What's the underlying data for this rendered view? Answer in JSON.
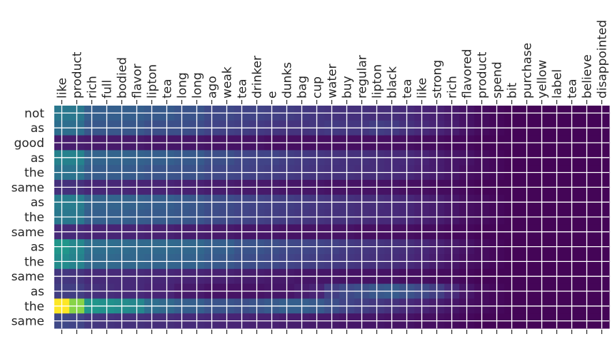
{
  "chart_data": {
    "type": "heatmap",
    "title": "",
    "xlabel": "",
    "ylabel": "",
    "grid": true,
    "legend": "none",
    "colormap": "viridis",
    "value_range": [
      0,
      1
    ],
    "x_categories": [
      "like",
      "product",
      "rich",
      "full",
      "bodied",
      "flavor",
      "lipton",
      "tea",
      "long",
      "long",
      "ago",
      "weak",
      "tea",
      "drinker",
      "e",
      "dunks",
      "bag",
      "cup",
      "water",
      "buy",
      "regular",
      "lipton",
      "black",
      "tea",
      "like",
      "strong",
      "rich",
      "flavored",
      "product",
      "spend",
      "bit",
      "purchase",
      "yellow",
      "label",
      "tea",
      "believe",
      "disappointed"
    ],
    "y_categories": [
      "not",
      "as",
      "good",
      "as",
      "the",
      "same",
      "as",
      "the",
      "same",
      "as",
      "the",
      "same",
      "as",
      "the",
      "same"
    ],
    "values": [
      [
        0.4,
        0.4,
        0.3,
        0.3,
        0.3,
        0.3,
        0.28,
        0.28,
        0.26,
        0.26,
        0.22,
        0.22,
        0.2,
        0.2,
        0.19,
        0.18,
        0.17,
        0.16,
        0.15,
        0.14,
        0.14,
        0.13,
        0.13,
        0.12,
        0.1,
        0.09,
        0.07,
        0.05,
        0.03,
        0.02,
        0.01,
        0.01,
        0.01,
        0.01,
        0.01,
        0.01,
        0.01
      ],
      [
        0.36,
        0.36,
        0.27,
        0.27,
        0.27,
        0.27,
        0.24,
        0.24,
        0.24,
        0.23,
        0.2,
        0.19,
        0.18,
        0.17,
        0.16,
        0.15,
        0.15,
        0.16,
        0.17,
        0.16,
        0.16,
        0.18,
        0.17,
        0.14,
        0.12,
        0.1,
        0.08,
        0.05,
        0.03,
        0.02,
        0.01,
        0.01,
        0.01,
        0.01,
        0.01,
        0.01,
        0.01
      ],
      [
        0.08,
        0.08,
        0.07,
        0.07,
        0.07,
        0.07,
        0.06,
        0.06,
        0.06,
        0.06,
        0.05,
        0.05,
        0.05,
        0.05,
        0.04,
        0.04,
        0.04,
        0.04,
        0.04,
        0.04,
        0.04,
        0.04,
        0.04,
        0.04,
        0.03,
        0.03,
        0.02,
        0.02,
        0.01,
        0.01,
        0.01,
        0.01,
        0.01,
        0.01,
        0.01,
        0.01,
        0.01
      ],
      [
        0.44,
        0.44,
        0.32,
        0.32,
        0.32,
        0.31,
        0.3,
        0.3,
        0.28,
        0.28,
        0.24,
        0.24,
        0.21,
        0.2,
        0.2,
        0.18,
        0.17,
        0.16,
        0.15,
        0.14,
        0.14,
        0.13,
        0.12,
        0.12,
        0.1,
        0.08,
        0.06,
        0.05,
        0.03,
        0.02,
        0.01,
        0.01,
        0.01,
        0.01,
        0.01,
        0.01,
        0.01
      ],
      [
        0.38,
        0.38,
        0.29,
        0.29,
        0.29,
        0.28,
        0.26,
        0.26,
        0.25,
        0.25,
        0.22,
        0.21,
        0.2,
        0.19,
        0.18,
        0.17,
        0.16,
        0.15,
        0.14,
        0.14,
        0.13,
        0.13,
        0.12,
        0.11,
        0.09,
        0.08,
        0.06,
        0.04,
        0.03,
        0.02,
        0.01,
        0.01,
        0.01,
        0.01,
        0.01,
        0.01,
        0.01
      ],
      [
        0.14,
        0.14,
        0.11,
        0.11,
        0.11,
        0.1,
        0.1,
        0.1,
        0.09,
        0.09,
        0.08,
        0.08,
        0.07,
        0.07,
        0.07,
        0.06,
        0.06,
        0.06,
        0.05,
        0.05,
        0.05,
        0.05,
        0.05,
        0.04,
        0.04,
        0.03,
        0.03,
        0.02,
        0.01,
        0.01,
        0.01,
        0.01,
        0.01,
        0.01,
        0.01,
        0.01,
        0.01
      ],
      [
        0.42,
        0.42,
        0.32,
        0.32,
        0.32,
        0.31,
        0.3,
        0.3,
        0.28,
        0.27,
        0.24,
        0.23,
        0.21,
        0.2,
        0.19,
        0.18,
        0.17,
        0.16,
        0.15,
        0.14,
        0.13,
        0.13,
        0.12,
        0.11,
        0.09,
        0.08,
        0.06,
        0.04,
        0.03,
        0.02,
        0.01,
        0.01,
        0.01,
        0.01,
        0.01,
        0.01,
        0.01
      ],
      [
        0.4,
        0.4,
        0.3,
        0.3,
        0.3,
        0.29,
        0.28,
        0.28,
        0.27,
        0.26,
        0.23,
        0.22,
        0.2,
        0.19,
        0.18,
        0.17,
        0.16,
        0.15,
        0.14,
        0.14,
        0.13,
        0.12,
        0.12,
        0.11,
        0.09,
        0.08,
        0.06,
        0.04,
        0.03,
        0.02,
        0.01,
        0.01,
        0.01,
        0.01,
        0.01,
        0.01,
        0.01
      ],
      [
        0.12,
        0.12,
        0.1,
        0.1,
        0.1,
        0.1,
        0.09,
        0.09,
        0.08,
        0.08,
        0.07,
        0.07,
        0.06,
        0.06,
        0.06,
        0.05,
        0.05,
        0.05,
        0.05,
        0.05,
        0.04,
        0.04,
        0.04,
        0.04,
        0.03,
        0.03,
        0.02,
        0.02,
        0.01,
        0.01,
        0.01,
        0.01,
        0.01,
        0.01,
        0.01,
        0.01,
        0.01
      ],
      [
        0.52,
        0.46,
        0.36,
        0.36,
        0.35,
        0.34,
        0.34,
        0.34,
        0.33,
        0.33,
        0.3,
        0.3,
        0.26,
        0.26,
        0.24,
        0.22,
        0.21,
        0.2,
        0.19,
        0.17,
        0.16,
        0.15,
        0.14,
        0.13,
        0.11,
        0.09,
        0.07,
        0.05,
        0.03,
        0.02,
        0.01,
        0.01,
        0.01,
        0.01,
        0.01,
        0.01,
        0.01
      ],
      [
        0.48,
        0.44,
        0.34,
        0.34,
        0.33,
        0.33,
        0.32,
        0.32,
        0.31,
        0.31,
        0.28,
        0.27,
        0.24,
        0.23,
        0.22,
        0.2,
        0.19,
        0.18,
        0.17,
        0.16,
        0.15,
        0.14,
        0.13,
        0.12,
        0.1,
        0.08,
        0.06,
        0.04,
        0.03,
        0.02,
        0.01,
        0.01,
        0.01,
        0.01,
        0.01,
        0.01,
        0.01
      ],
      [
        0.16,
        0.15,
        0.12,
        0.12,
        0.12,
        0.12,
        0.11,
        0.11,
        0.1,
        0.1,
        0.09,
        0.09,
        0.08,
        0.08,
        0.07,
        0.07,
        0.06,
        0.06,
        0.06,
        0.05,
        0.05,
        0.05,
        0.05,
        0.04,
        0.04,
        0.03,
        0.03,
        0.02,
        0.01,
        0.01,
        0.01,
        0.01,
        0.01,
        0.01,
        0.01,
        0.01,
        0.01
      ],
      [
        0.18,
        0.18,
        0.14,
        0.13,
        0.12,
        0.12,
        0.1,
        0.1,
        0.07,
        0.07,
        0.05,
        0.05,
        0.05,
        0.05,
        0.06,
        0.06,
        0.08,
        0.1,
        0.18,
        0.22,
        0.24,
        0.27,
        0.28,
        0.25,
        0.22,
        0.18,
        0.12,
        0.06,
        0.03,
        0.02,
        0.01,
        0.01,
        0.01,
        0.01,
        0.01,
        0.01,
        0.01
      ],
      [
        1.0,
        0.82,
        0.52,
        0.5,
        0.48,
        0.46,
        0.36,
        0.34,
        0.3,
        0.3,
        0.26,
        0.26,
        0.24,
        0.26,
        0.28,
        0.3,
        0.3,
        0.28,
        0.24,
        0.2,
        0.18,
        0.16,
        0.14,
        0.12,
        0.1,
        0.08,
        0.06,
        0.04,
        0.03,
        0.02,
        0.01,
        0.01,
        0.01,
        0.01,
        0.01,
        0.01,
        0.01
      ],
      [
        0.22,
        0.2,
        0.16,
        0.15,
        0.14,
        0.14,
        0.13,
        0.13,
        0.12,
        0.12,
        0.11,
        0.1,
        0.1,
        0.09,
        0.09,
        0.08,
        0.08,
        0.07,
        0.07,
        0.06,
        0.06,
        0.06,
        0.05,
        0.05,
        0.04,
        0.04,
        0.03,
        0.02,
        0.01,
        0.01,
        0.01,
        0.01,
        0.01,
        0.01,
        0.01,
        0.01,
        0.01
      ]
    ]
  }
}
